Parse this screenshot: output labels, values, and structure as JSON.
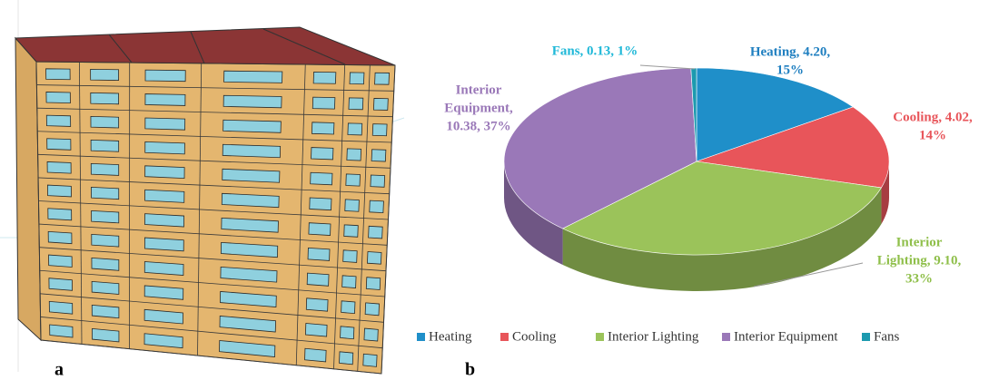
{
  "panel_labels": [
    "a",
    "b"
  ],
  "chart_data": {
    "type": "pie3d",
    "categories": [
      "Heating",
      "Cooling",
      "Interior Lighting",
      "Interior Equipment",
      "Fans"
    ],
    "values": [
      4.2,
      4.02,
      9.1,
      10.38,
      0.13
    ],
    "value_labels": [
      [
        "Heating, 4.20,",
        "15%"
      ],
      [
        "Cooling, 4.02,",
        "14%"
      ],
      [
        "Interior",
        "Lighting, 9.10,",
        "33%"
      ],
      [
        "Interior",
        "Equipment,",
        "10.38, 37%"
      ],
      [
        "Fans, 0.13, 1%"
      ]
    ],
    "colors": [
      "#1f8fc9",
      "#e8555a",
      "#9bc35a",
      "#9a78b8",
      "#1c9aaf"
    ],
    "label_colors": [
      "#1f7fc0",
      "#e8555a",
      "#8fbf4a",
      "#9a78b8",
      "#1fb8d8"
    ],
    "legend": "bottom"
  }
}
